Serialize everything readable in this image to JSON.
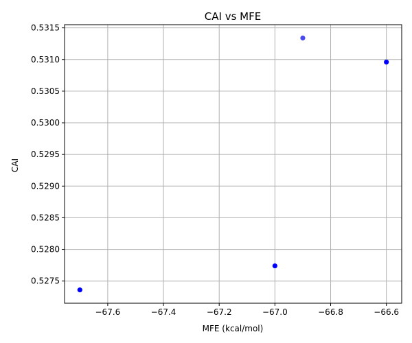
{
  "chart_data": {
    "type": "scatter",
    "title": "CAI vs MFE",
    "xlabel": "MFE (kcal/mol)",
    "ylabel": "CAI",
    "xlim": [
      -67.755,
      -66.545
    ],
    "ylim": [
      0.52715,
      0.53155
    ],
    "xticks": [
      -67.6,
      -67.4,
      -67.2,
      -67.0,
      -66.8,
      -66.6
    ],
    "xtick_labels": [
      "−67.6",
      "−67.4",
      "−67.2",
      "−67.0",
      "−66.8",
      "−66.6"
    ],
    "yticks": [
      0.5275,
      0.528,
      0.5285,
      0.529,
      0.5295,
      0.53,
      0.5305,
      0.531,
      0.5315
    ],
    "ytick_labels": [
      "0.5275",
      "0.5280",
      "0.5285",
      "0.5290",
      "0.5295",
      "0.5300",
      "0.5305",
      "0.5310",
      "0.5315"
    ],
    "grid": true,
    "points": [
      {
        "x": -67.7,
        "y": 0.52736,
        "color": "#0000ff"
      },
      {
        "x": -67.0,
        "y": 0.52774,
        "color": "#0000ff"
      },
      {
        "x": -66.9,
        "y": 0.53134,
        "color": "#4a4aee"
      },
      {
        "x": -66.6,
        "y": 0.53096,
        "color": "#0000ff"
      }
    ],
    "colors": {
      "axis": "#000000",
      "grid": "#b0b0b0"
    }
  }
}
